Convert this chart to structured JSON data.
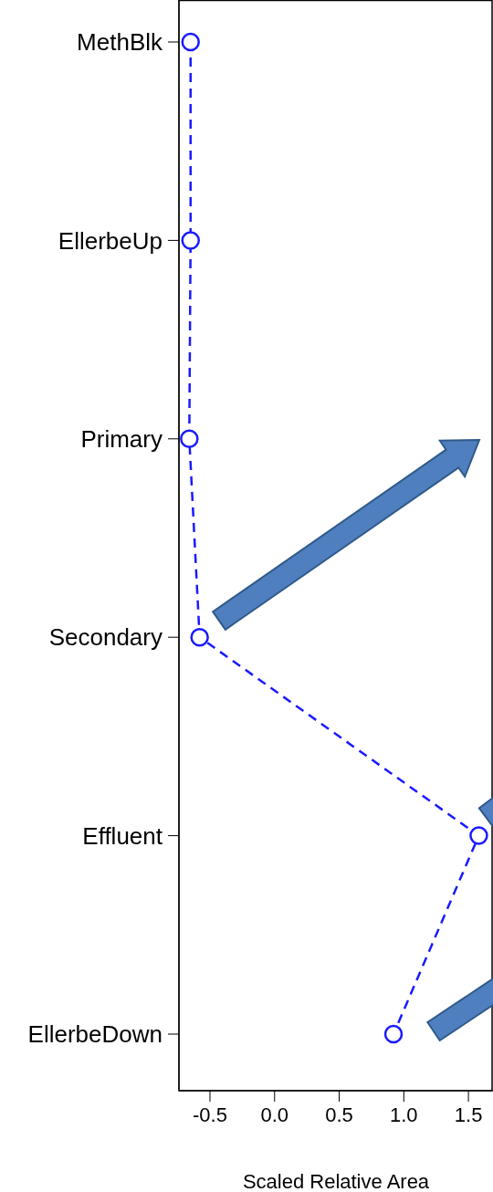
{
  "chart_data": {
    "type": "line",
    "orientation": "horizontal",
    "xlabel": "Scaled Relative Area",
    "categories": [
      "MethBlk",
      "EllerbeUp",
      "Primary",
      "Secondary",
      "Effluent",
      "EllerbeDown"
    ],
    "values": [
      -0.65,
      -0.65,
      -0.66,
      -0.58,
      1.58,
      0.92
    ],
    "color": "#1a1aff",
    "marker": "circle",
    "line_style": "dashed",
    "legend": false,
    "grid": false,
    "xlim": [
      -0.74,
      1.69
    ],
    "xticks": [
      -0.5,
      {
        "value": 0,
        "label": "0.0"
      },
      0.5,
      {
        "value": 1,
        "label": "1.0"
      },
      1.5
    ]
  }
}
